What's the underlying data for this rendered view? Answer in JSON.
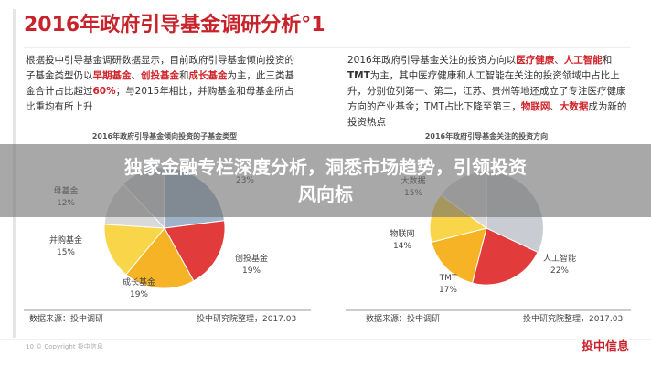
{
  "header": {
    "title": "2016年政府引导基金调研分析°1"
  },
  "left_text": {
    "segments": [
      "根据投中引导基金调研数据显示，目前政府引导基金倾向投资的子基金类型仍以",
      "早期基金",
      "、",
      "创投基金",
      "和",
      "成长基金",
      "为主，此三类基金合计占比超过",
      "60%",
      "；与2015年相比，并购基金和母基金所占比重均有所上升"
    ]
  },
  "right_text": {
    "segments": [
      "2016年政府引导基金关注的投资方向以",
      "医疗健康",
      "、",
      "人工智能",
      "和",
      "TMT",
      "为主，其中医疗健康和人工智能在关注的投资领域中占比上升，分别位列第一、第二，江苏、贵州等地还成立了专注医疗健康方向的产业基金；TMT占比下降至第三，",
      "物联网",
      "、",
      "大数据",
      "成为新的投资热点"
    ]
  },
  "chart_data": [
    {
      "type": "pie",
      "title": "2016年政府引导基金倾向投资的子基金类型",
      "categories": [
        null,
        "创投基金",
        "成长基金",
        "并购基金",
        "母基金"
      ],
      "values": [
        23,
        19,
        19,
        15,
        12
      ],
      "value_labels": [
        "23%",
        "19%",
        "19%",
        "15%",
        "12%"
      ],
      "colors": [
        "#9fb3c8",
        "#e23b3b",
        "#f5b325",
        "#f9d54a",
        "#d9d9d9"
      ],
      "source": "数据来源：投中调研",
      "credit": "投中研究院整理，2017.03"
    },
    {
      "type": "pie",
      "title": "2016年政府引导基金关注的投资方向",
      "categories": [
        "人工智能",
        "TMT",
        "物联网",
        "大数据"
      ],
      "values": [
        22,
        17,
        14,
        15
      ],
      "value_labels": [
        "22%",
        "17%",
        "14%",
        "15%"
      ],
      "colors": [
        "#e23b3b",
        "#f5b325",
        "#f9d54a",
        "#d9d9d9"
      ],
      "source": "数据来源：投中调研",
      "credit": "投中研究院整理，2017.03"
    }
  ],
  "banner": {
    "text": "独家金融专栏深度分析，洞悉市场趋势，引领投资风向标"
  },
  "footer": {
    "page": "10 © Copyright 投中信息",
    "logo": "投中信息"
  }
}
